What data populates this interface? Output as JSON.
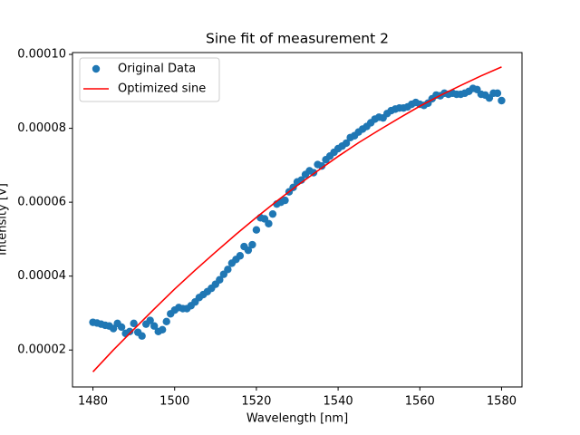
{
  "chart_data": {
    "type": "scatter",
    "title": "Sine fit of measurement 2",
    "x_label": "Wavelength [nm]",
    "y_label": "Intensity [V]",
    "xlim": [
      1475,
      1585
    ],
    "ylim": [
      1e-05,
      0.0001005
    ],
    "xticks": [
      1480,
      1500,
      1520,
      1540,
      1560,
      1580
    ],
    "yticks": [
      {
        "value": 2e-05,
        "label": "0.00002"
      },
      {
        "value": 4e-05,
        "label": "0.00004"
      },
      {
        "value": 6e-05,
        "label": "0.00006"
      },
      {
        "value": 8e-05,
        "label": "0.00008"
      },
      {
        "value": 0.0001,
        "label": "0.00010"
      }
    ],
    "legend": "upper left",
    "series": [
      {
        "name": "Original Data",
        "color": "#1f77b4",
        "style": "points",
        "x": [
          1480,
          1481,
          1482,
          1483,
          1484,
          1485,
          1486,
          1487,
          1488,
          1489,
          1490,
          1491,
          1492,
          1493,
          1494,
          1495,
          1496,
          1497,
          1498,
          1499,
          1500,
          1501,
          1502,
          1503,
          1504,
          1505,
          1506,
          1507,
          1508,
          1509,
          1510,
          1511,
          1512,
          1513,
          1514,
          1515,
          1516,
          1517,
          1518,
          1519,
          1520,
          1521,
          1522,
          1523,
          1524,
          1525,
          1526,
          1527,
          1528,
          1529,
          1530,
          1531,
          1532,
          1533,
          1534,
          1535,
          1536,
          1537,
          1538,
          1539,
          1540,
          1541,
          1542,
          1543,
          1544,
          1545,
          1546,
          1547,
          1548,
          1549,
          1550,
          1551,
          1552,
          1553,
          1554,
          1555,
          1556,
          1557,
          1558,
          1559,
          1560,
          1561,
          1562,
          1563,
          1564,
          1565,
          1566,
          1567,
          1568,
          1569,
          1570,
          1571,
          1572,
          1573,
          1574,
          1575,
          1576,
          1577,
          1578,
          1579,
          1580
        ],
        "values": [
          2.75e-05,
          2.73e-05,
          2.7e-05,
          2.67e-05,
          2.65e-05,
          2.58e-05,
          2.72e-05,
          2.62e-05,
          2.45e-05,
          2.5e-05,
          2.72e-05,
          2.48e-05,
          2.38e-05,
          2.7e-05,
          2.8e-05,
          2.65e-05,
          2.5e-05,
          2.55e-05,
          2.77e-05,
          2.98e-05,
          3.08e-05,
          3.15e-05,
          3.12e-05,
          3.12e-05,
          3.2e-05,
          3.3e-05,
          3.42e-05,
          3.5e-05,
          3.58e-05,
          3.67e-05,
          3.78e-05,
          3.9e-05,
          4.05e-05,
          4.18e-05,
          4.35e-05,
          4.45e-05,
          4.55e-05,
          4.8e-05,
          4.7e-05,
          4.85e-05,
          5.25e-05,
          5.58e-05,
          5.55e-05,
          5.42e-05,
          5.68e-05,
          5.95e-05,
          6e-05,
          6.05e-05,
          6.28e-05,
          6.4e-05,
          6.55e-05,
          6.6e-05,
          6.75e-05,
          6.85e-05,
          6.8e-05,
          7.02e-05,
          6.98e-05,
          7.15e-05,
          7.25e-05,
          7.35e-05,
          7.45e-05,
          7.52e-05,
          7.6e-05,
          7.75e-05,
          7.8e-05,
          7.9e-05,
          7.98e-05,
          8.05e-05,
          8.15e-05,
          8.25e-05,
          8.3e-05,
          8.28e-05,
          8.4e-05,
          8.48e-05,
          8.52e-05,
          8.55e-05,
          8.55e-05,
          8.58e-05,
          8.65e-05,
          8.7e-05,
          8.65e-05,
          8.62e-05,
          8.68e-05,
          8.8e-05,
          8.9e-05,
          8.88e-05,
          8.95e-05,
          8.92e-05,
          8.95e-05,
          8.92e-05,
          8.92e-05,
          8.95e-05,
          9e-05,
          9.08e-05,
          9.05e-05,
          8.92e-05,
          8.9e-05,
          8.82e-05,
          8.95e-05,
          8.95e-05,
          8.75e-05
        ]
      },
      {
        "name": "Optimized sine",
        "color": "#ff0000",
        "style": "line",
        "x": [
          1480,
          1485,
          1490,
          1495,
          1500,
          1505,
          1510,
          1515,
          1520,
          1525,
          1530,
          1535,
          1540,
          1545,
          1550,
          1555,
          1560,
          1565,
          1570,
          1575,
          1580
        ],
        "values": [
          1.41e-05,
          2e-05,
          2.56e-05,
          3.11e-05,
          3.65e-05,
          4.16e-05,
          4.65e-05,
          5.13e-05,
          5.59e-05,
          6.03e-05,
          6.45e-05,
          6.85e-05,
          7.24e-05,
          7.61e-05,
          7.95e-05,
          8.28e-05,
          8.6e-05,
          8.89e-05,
          9.16e-05,
          9.42e-05,
          9.66e-05
        ]
      }
    ]
  }
}
